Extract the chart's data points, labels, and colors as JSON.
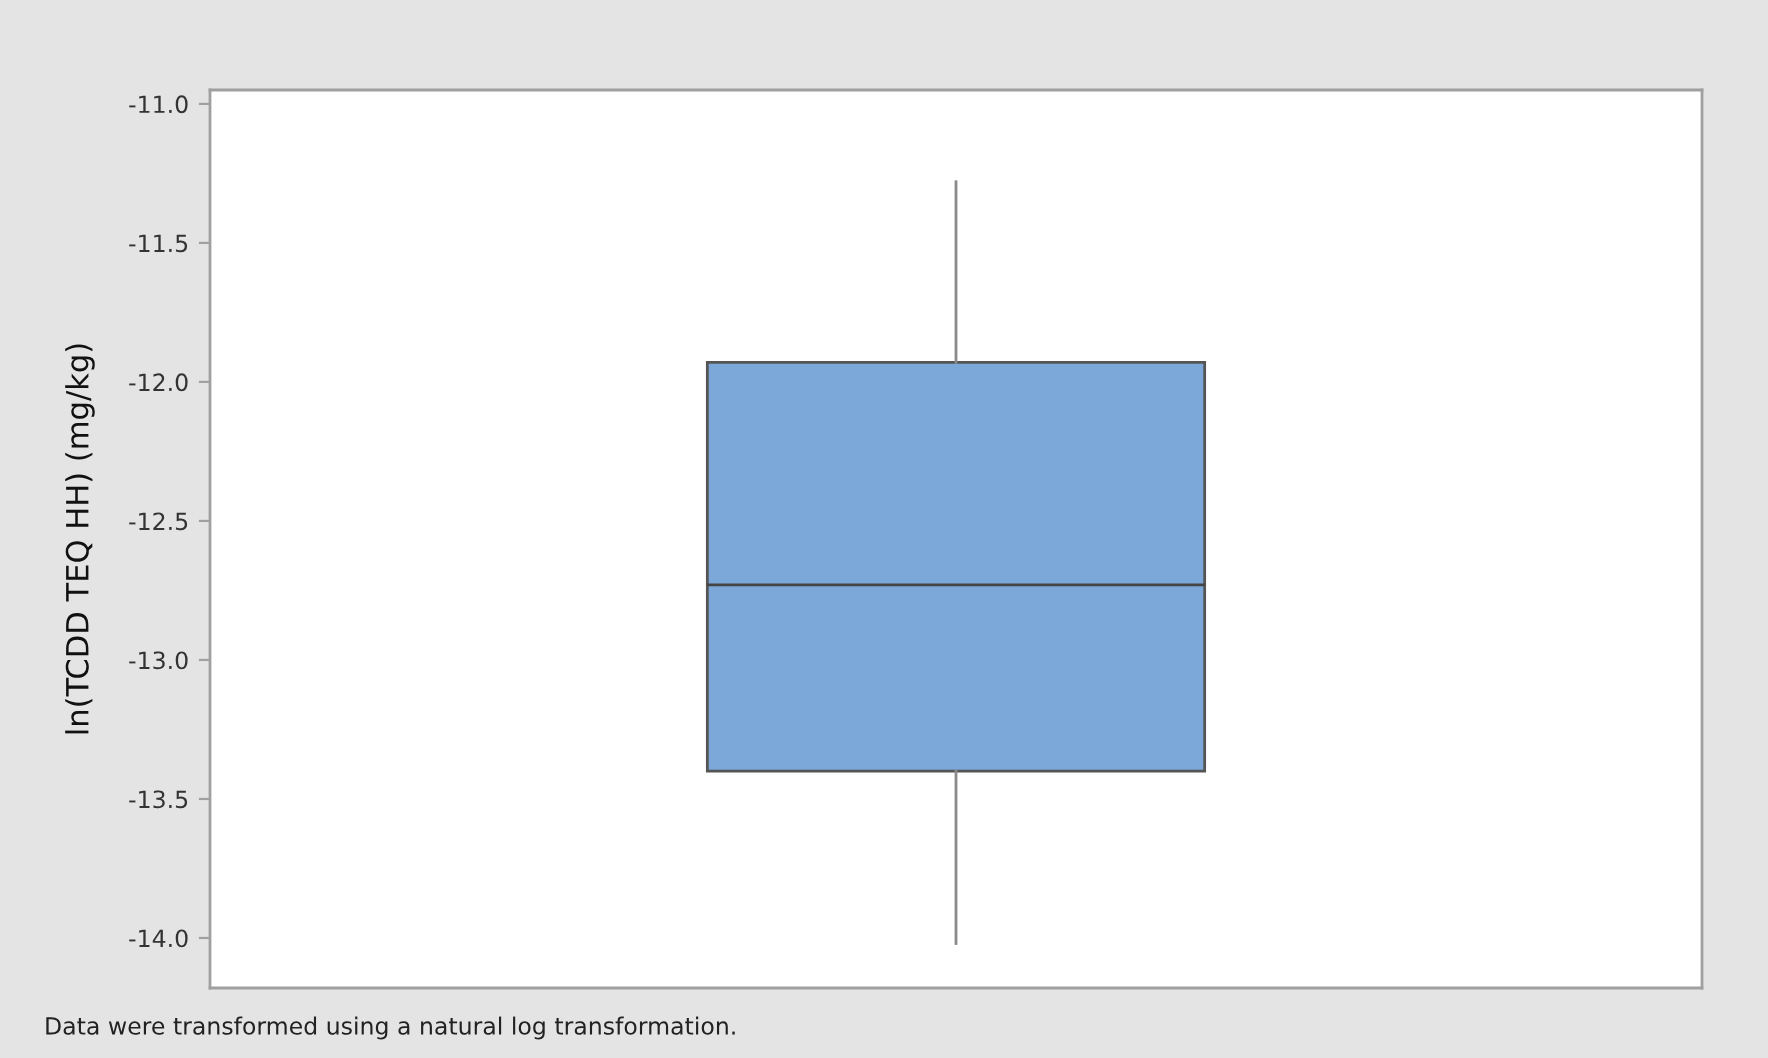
{
  "chart_data": {
    "type": "box",
    "categories": [
      null
    ],
    "series": [
      {
        "color": "#7ba7d9",
        "boxes": [
          {
            "low": -14.02,
            "q1": -13.4,
            "median": -12.73,
            "q3": -11.93,
            "high": -11.28
          }
        ]
      }
    ],
    "ylabel": "ln(TCDD TEQ HH) (mg/kg)",
    "annotations": [
      "Data were transformed using a natural log transformation."
    ],
    "ylim": [
      -14.18,
      -10.95
    ],
    "yticks": [
      {
        "value": -14,
        "label": "-14.0"
      },
      {
        "value": -13.5,
        "label": "-13.5"
      },
      {
        "value": -13,
        "label": "-13.0"
      },
      {
        "value": -12.5,
        "label": "-12.5"
      },
      {
        "value": -12,
        "label": "-12.0"
      },
      {
        "value": -11.5,
        "label": "-11.5"
      },
      {
        "value": -11,
        "label": "-11.0"
      }
    ],
    "tick_labels": "y"
  }
}
